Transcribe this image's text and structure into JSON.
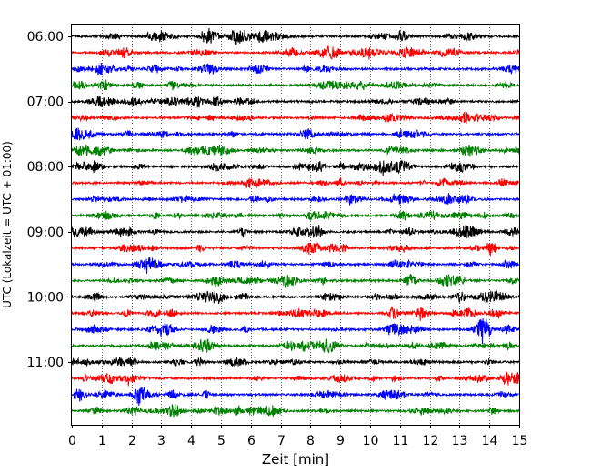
{
  "chart_data": {
    "type": "line",
    "title": "",
    "xlabel": "Zeit  [min]",
    "ylabel": "UTC (Lokalzeit = UTC + 01:00)",
    "xlim": [
      0,
      15
    ],
    "x_ticks": [
      0,
      1,
      2,
      3,
      4,
      5,
      6,
      7,
      8,
      9,
      10,
      11,
      12,
      13,
      14,
      15
    ],
    "y_tick_labels": [
      "06:00",
      "07:00",
      "08:00",
      "09:00",
      "10:00",
      "11:00"
    ],
    "trace_start_times": [
      "06:00",
      "06:15",
      "06:30",
      "06:45",
      "07:00",
      "07:15",
      "07:30",
      "07:45",
      "08:00",
      "08:15",
      "08:30",
      "08:45",
      "09:00",
      "09:15",
      "09:30",
      "09:45",
      "10:00",
      "10:15",
      "10:30",
      "10:45",
      "11:00",
      "11:15",
      "11:30",
      "11:45"
    ],
    "trace_minutes_per_line": 15,
    "trace_colors": [
      "#000000",
      "#ff0000",
      "#0000ff",
      "#008000"
    ],
    "vertical_grid": true,
    "grid_style": "dotted",
    "legend": "none"
  }
}
